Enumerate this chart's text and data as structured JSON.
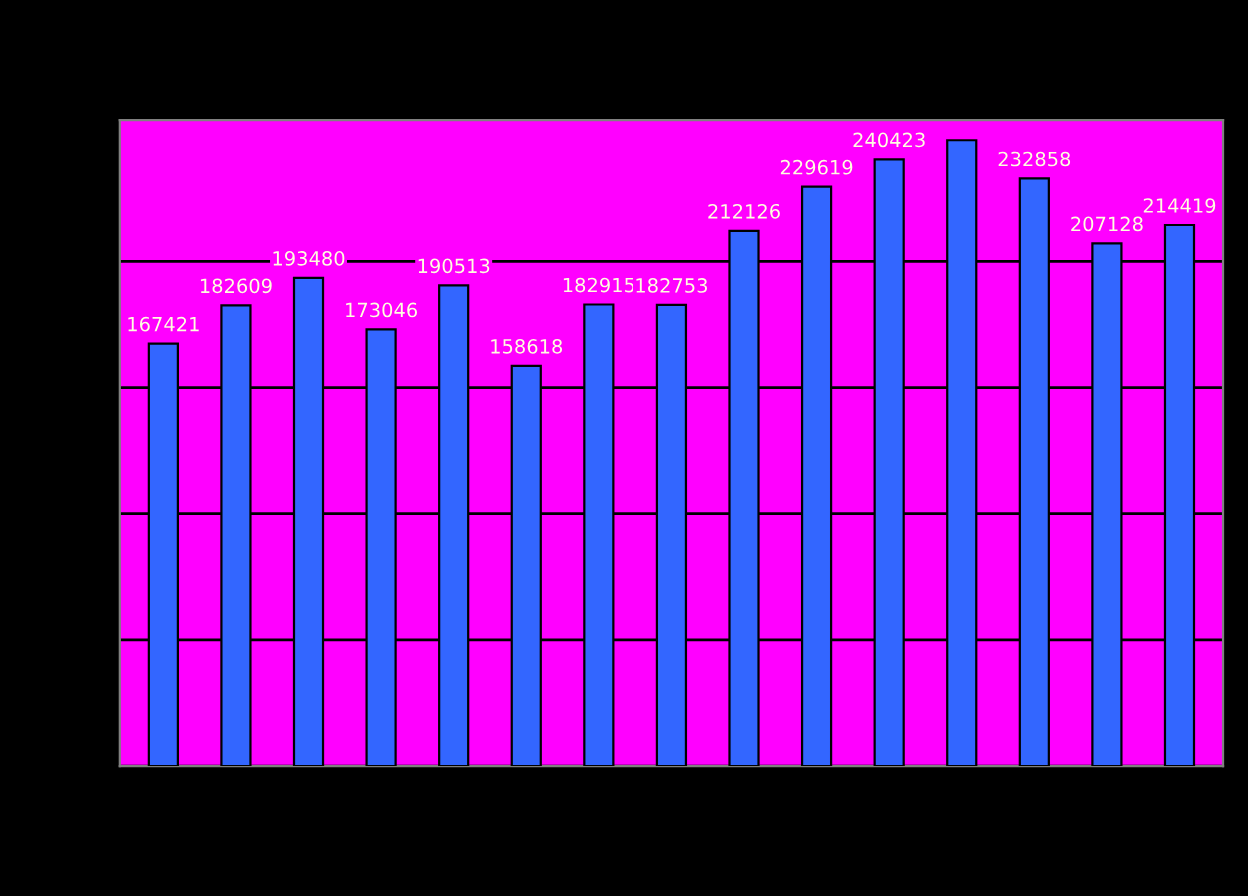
{
  "chart_data": {
    "type": "bar",
    "categories": [
      null,
      null,
      null,
      null,
      null,
      null,
      null,
      null,
      null,
      null,
      null,
      null,
      null,
      null,
      null
    ],
    "values": [
      167421,
      182609,
      193480,
      173046,
      190513,
      158618,
      182915,
      182753,
      212126,
      229619,
      240423,
      248000,
      232858,
      207128,
      214419
    ],
    "value_labels": [
      "167421",
      "182609",
      "193480",
      "173046",
      "190513",
      "158618",
      "182915",
      "182753",
      "212126",
      "229619",
      "240423",
      null,
      "232858",
      "207128",
      "214419"
    ],
    "color": "#3366ff",
    "ylim": [
      0,
      256000
    ],
    "yticks": [
      {
        "value": 0,
        "label": null
      },
      {
        "value": 50000,
        "label": null
      },
      {
        "value": 100000,
        "label": null
      },
      {
        "value": 150000,
        "label": null
      },
      {
        "value": 200000,
        "label": null
      }
    ],
    "grid": "y"
  }
}
